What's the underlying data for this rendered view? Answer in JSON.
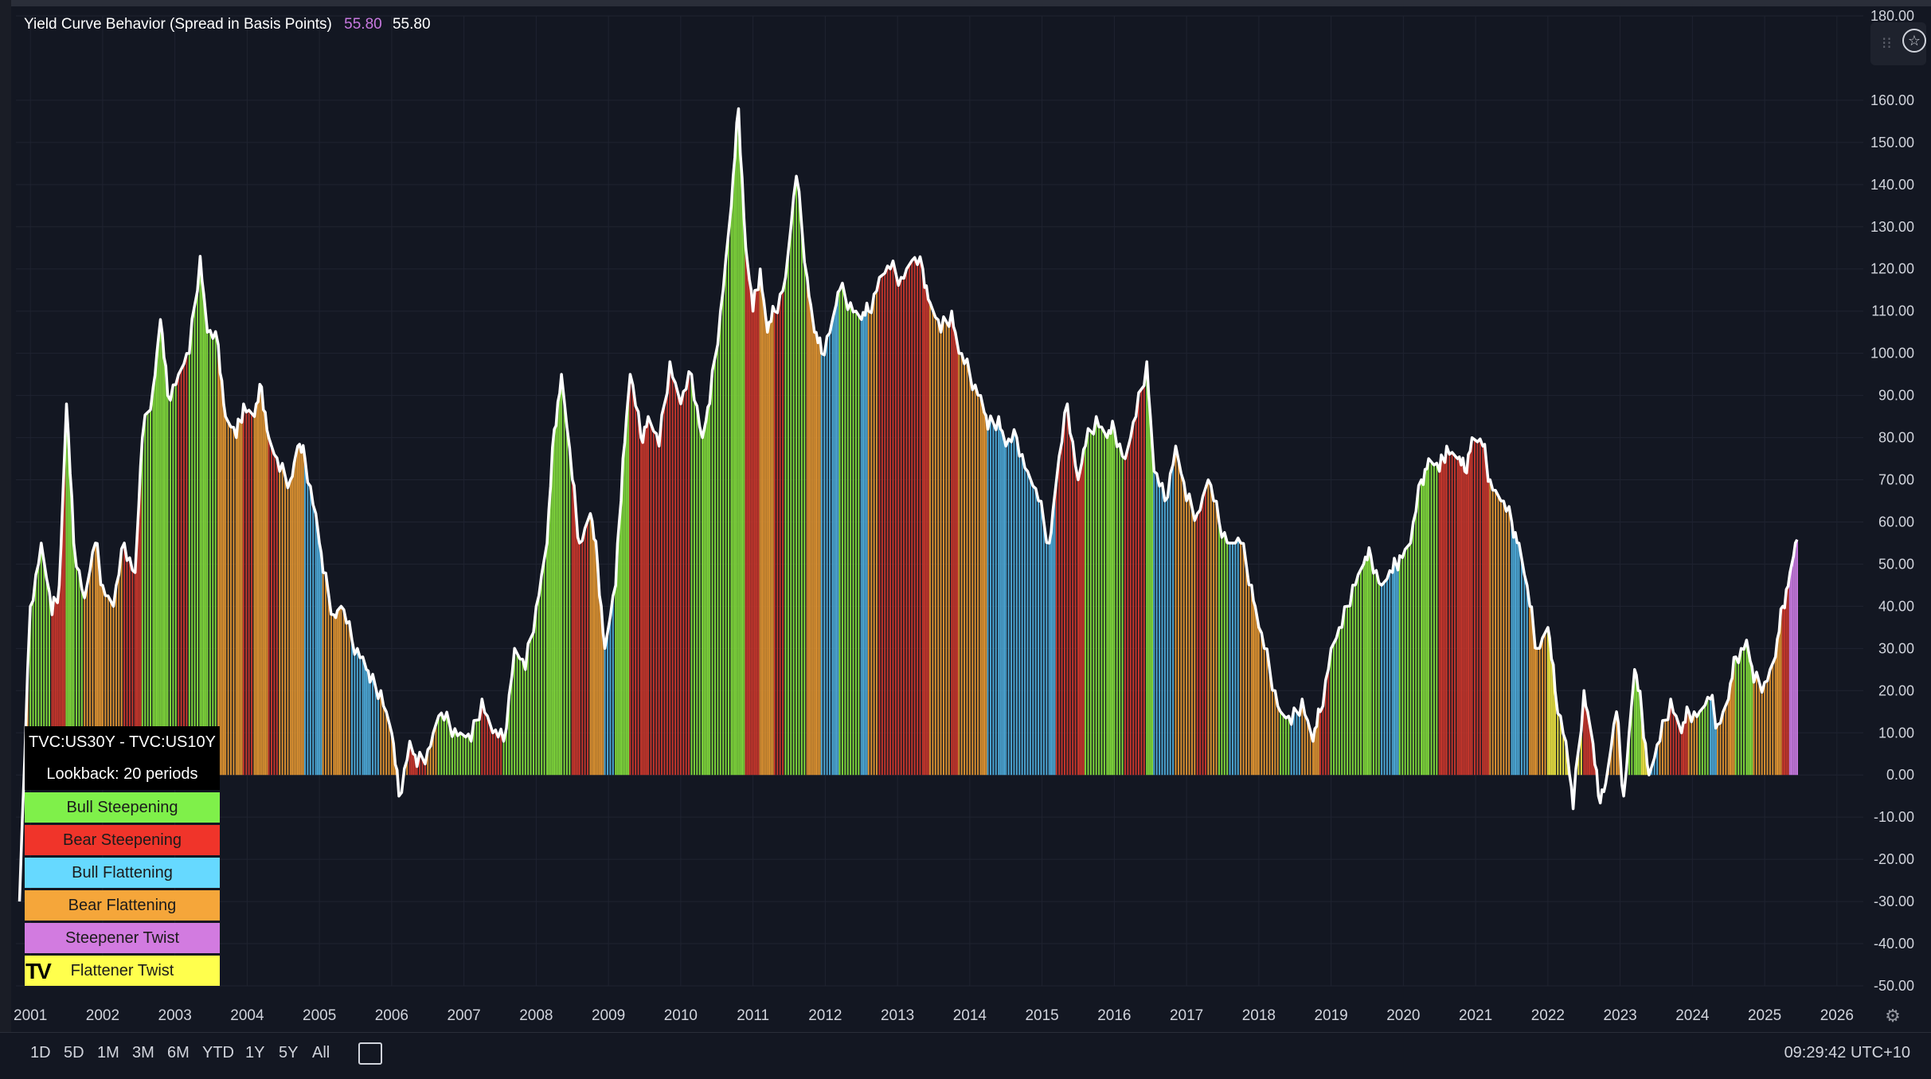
{
  "indicator": {
    "title": "Yield Curve Behavior (Spread in Basis Points)",
    "value_1": "55.80",
    "value_2": "55.80"
  },
  "legend": {
    "pair": "TVC:US30Y - TVC:US10Y",
    "lookback": "Lookback: 20 periods",
    "items": [
      {
        "label": "Bull Steepening",
        "color": "#7ff04a"
      },
      {
        "label": "Bear Steepening",
        "color": "#f0342a"
      },
      {
        "label": "Bull Flattening",
        "color": "#66d9ff"
      },
      {
        "label": "Bear Flattening",
        "color": "#f5a63a"
      },
      {
        "label": "Steepener Twist",
        "color": "#d27be0"
      },
      {
        "label": "Flattener Twist",
        "color": "#ffff4d"
      }
    ]
  },
  "logo_text": "TV",
  "range_buttons": [
    "1D",
    "5D",
    "1M",
    "3M",
    "6M",
    "YTD",
    "1Y",
    "5Y",
    "All"
  ],
  "clock": "09:29:42 UTC+10",
  "chart_data": {
    "type": "bar",
    "ylim": [
      -50,
      180
    ],
    "y_ticks": [
      "180.00",
      "160.00",
      "150.00",
      "140.00",
      "130.00",
      "120.00",
      "110.00",
      "100.00",
      "90.00",
      "80.00",
      "70.00",
      "60.00",
      "50.00",
      "40.00",
      "30.00",
      "20.00",
      "10.00",
      "0.00",
      "-10.00",
      "-20.00",
      "-30.00",
      "-40.00",
      "-50.00"
    ],
    "x_ticks": [
      "2001",
      "2002",
      "2003",
      "2004",
      "2005",
      "2006",
      "2007",
      "2008",
      "2009",
      "2010",
      "2011",
      "2012",
      "2013",
      "2014",
      "2015",
      "2016",
      "2017",
      "2018",
      "2019",
      "2020",
      "2021",
      "2022",
      "2023",
      "2024",
      "2025",
      "2026"
    ],
    "x_range": [
      2000.8,
      2026.2
    ],
    "line_color": "#ffffff",
    "regime_colors": {
      "BS": "#7dd33a",
      "BRS": "#c2352b",
      "BF": "#4aa3d0",
      "BRF": "#d88f30",
      "ST": "#c879e0",
      "FT": "#e8e040"
    },
    "series": [
      {
        "x": 2000.85,
        "y": -30,
        "r": "BRF"
      },
      {
        "x": 2001.0,
        "y": 40,
        "r": "BS"
      },
      {
        "x": 2001.15,
        "y": 55,
        "r": "BS"
      },
      {
        "x": 2001.3,
        "y": 38,
        "r": "BRS"
      },
      {
        "x": 2001.4,
        "y": 45,
        "r": "BRS"
      },
      {
        "x": 2001.5,
        "y": 88,
        "r": "BS"
      },
      {
        "x": 2001.6,
        "y": 55,
        "r": "BS"
      },
      {
        "x": 2001.75,
        "y": 42,
        "r": "BRF"
      },
      {
        "x": 2001.9,
        "y": 55,
        "r": "BRF"
      },
      {
        "x": 2002.0,
        "y": 45,
        "r": "BRF"
      },
      {
        "x": 2002.15,
        "y": 40,
        "r": "BRF"
      },
      {
        "x": 2002.3,
        "y": 55,
        "r": "BRS"
      },
      {
        "x": 2002.45,
        "y": 48,
        "r": "BRS"
      },
      {
        "x": 2002.55,
        "y": 80,
        "r": "BS"
      },
      {
        "x": 2002.7,
        "y": 92,
        "r": "BS"
      },
      {
        "x": 2002.8,
        "y": 108,
        "r": "BS"
      },
      {
        "x": 2002.9,
        "y": 90,
        "r": "BS"
      },
      {
        "x": 2003.05,
        "y": 95,
        "r": "BRS"
      },
      {
        "x": 2003.2,
        "y": 100,
        "r": "BS"
      },
      {
        "x": 2003.35,
        "y": 123,
        "r": "BS"
      },
      {
        "x": 2003.45,
        "y": 105,
        "r": "BS"
      },
      {
        "x": 2003.6,
        "y": 102,
        "r": "BRF"
      },
      {
        "x": 2003.7,
        "y": 85,
        "r": "BRF"
      },
      {
        "x": 2003.85,
        "y": 80,
        "r": "BRF"
      },
      {
        "x": 2003.95,
        "y": 88,
        "r": "BRS"
      },
      {
        "x": 2004.1,
        "y": 85,
        "r": "BRF"
      },
      {
        "x": 2004.2,
        "y": 92,
        "r": "BRF"
      },
      {
        "x": 2004.3,
        "y": 80,
        "r": "BRS"
      },
      {
        "x": 2004.45,
        "y": 72,
        "r": "BRF"
      },
      {
        "x": 2004.6,
        "y": 70,
        "r": "BRF"
      },
      {
        "x": 2004.7,
        "y": 78,
        "r": "BRF"
      },
      {
        "x": 2004.8,
        "y": 75,
        "r": "BF"
      },
      {
        "x": 2004.95,
        "y": 62,
        "r": "BF"
      },
      {
        "x": 2005.05,
        "y": 48,
        "r": "BRF"
      },
      {
        "x": 2005.2,
        "y": 38,
        "r": "BRF"
      },
      {
        "x": 2005.3,
        "y": 40,
        "r": "BRF"
      },
      {
        "x": 2005.45,
        "y": 32,
        "r": "BF"
      },
      {
        "x": 2005.6,
        "y": 28,
        "r": "BF"
      },
      {
        "x": 2005.7,
        "y": 22,
        "r": "BF"
      },
      {
        "x": 2005.85,
        "y": 20,
        "r": "BRF"
      },
      {
        "x": 2006.0,
        "y": 10,
        "r": "BRF"
      },
      {
        "x": 2006.1,
        "y": -5,
        "r": "BRF"
      },
      {
        "x": 2006.25,
        "y": 8,
        "r": "BRS"
      },
      {
        "x": 2006.35,
        "y": 2,
        "r": "BRS"
      },
      {
        "x": 2006.5,
        "y": 6,
        "r": "BRF"
      },
      {
        "x": 2006.65,
        "y": 14,
        "r": "BS"
      },
      {
        "x": 2006.8,
        "y": 12,
        "r": "BS"
      },
      {
        "x": 2006.95,
        "y": 10,
        "r": "BS"
      },
      {
        "x": 2007.1,
        "y": 8,
        "r": "BS"
      },
      {
        "x": 2007.25,
        "y": 18,
        "r": "BRS"
      },
      {
        "x": 2007.4,
        "y": 10,
        "r": "BRS"
      },
      {
        "x": 2007.55,
        "y": 8,
        "r": "BS"
      },
      {
        "x": 2007.7,
        "y": 30,
        "r": "BS"
      },
      {
        "x": 2007.85,
        "y": 25,
        "r": "BS"
      },
      {
        "x": 2008.0,
        "y": 40,
        "r": "BS"
      },
      {
        "x": 2008.15,
        "y": 55,
        "r": "BS"
      },
      {
        "x": 2008.25,
        "y": 82,
        "r": "BS"
      },
      {
        "x": 2008.35,
        "y": 95,
        "r": "BS"
      },
      {
        "x": 2008.5,
        "y": 70,
        "r": "BRS"
      },
      {
        "x": 2008.6,
        "y": 55,
        "r": "BRS"
      },
      {
        "x": 2008.75,
        "y": 62,
        "r": "BRF"
      },
      {
        "x": 2008.85,
        "y": 50,
        "r": "BRF"
      },
      {
        "x": 2008.95,
        "y": 30,
        "r": "BF"
      },
      {
        "x": 2009.1,
        "y": 45,
        "r": "BS"
      },
      {
        "x": 2009.2,
        "y": 75,
        "r": "BS"
      },
      {
        "x": 2009.3,
        "y": 95,
        "r": "BRS"
      },
      {
        "x": 2009.45,
        "y": 80,
        "r": "BRS"
      },
      {
        "x": 2009.55,
        "y": 85,
        "r": "BRS"
      },
      {
        "x": 2009.7,
        "y": 78,
        "r": "BRS"
      },
      {
        "x": 2009.85,
        "y": 98,
        "r": "BRS"
      },
      {
        "x": 2010.0,
        "y": 88,
        "r": "BRS"
      },
      {
        "x": 2010.15,
        "y": 95,
        "r": "BS"
      },
      {
        "x": 2010.3,
        "y": 80,
        "r": "BS"
      },
      {
        "x": 2010.4,
        "y": 88,
        "r": "BS"
      },
      {
        "x": 2010.55,
        "y": 110,
        "r": "BS"
      },
      {
        "x": 2010.7,
        "y": 135,
        "r": "BS"
      },
      {
        "x": 2010.8,
        "y": 158,
        "r": "BS"
      },
      {
        "x": 2010.9,
        "y": 125,
        "r": "BRS"
      },
      {
        "x": 2011.0,
        "y": 110,
        "r": "BRS"
      },
      {
        "x": 2011.1,
        "y": 120,
        "r": "BRF"
      },
      {
        "x": 2011.2,
        "y": 105,
        "r": "BRF"
      },
      {
        "x": 2011.3,
        "y": 110,
        "r": "BRS"
      },
      {
        "x": 2011.45,
        "y": 118,
        "r": "BS"
      },
      {
        "x": 2011.6,
        "y": 142,
        "r": "BS"
      },
      {
        "x": 2011.75,
        "y": 118,
        "r": "BRF"
      },
      {
        "x": 2011.85,
        "y": 105,
        "r": "BRF"
      },
      {
        "x": 2011.95,
        "y": 100,
        "r": "BF"
      },
      {
        "x": 2012.1,
        "y": 108,
        "r": "BF"
      },
      {
        "x": 2012.2,
        "y": 115,
        "r": "BS"
      },
      {
        "x": 2012.35,
        "y": 112,
        "r": "BS"
      },
      {
        "x": 2012.5,
        "y": 108,
        "r": "BF"
      },
      {
        "x": 2012.6,
        "y": 110,
        "r": "BRF"
      },
      {
        "x": 2012.75,
        "y": 118,
        "r": "BRS"
      },
      {
        "x": 2012.9,
        "y": 120,
        "r": "BRS"
      },
      {
        "x": 2013.05,
        "y": 118,
        "r": "BRS"
      },
      {
        "x": 2013.2,
        "y": 122,
        "r": "BRS"
      },
      {
        "x": 2013.35,
        "y": 120,
        "r": "BRS"
      },
      {
        "x": 2013.45,
        "y": 112,
        "r": "BRF"
      },
      {
        "x": 2013.6,
        "y": 105,
        "r": "BRF"
      },
      {
        "x": 2013.75,
        "y": 110,
        "r": "BRS"
      },
      {
        "x": 2013.85,
        "y": 100,
        "r": "BRF"
      },
      {
        "x": 2014.0,
        "y": 95,
        "r": "BRF"
      },
      {
        "x": 2014.15,
        "y": 90,
        "r": "BRF"
      },
      {
        "x": 2014.25,
        "y": 82,
        "r": "BF"
      },
      {
        "x": 2014.4,
        "y": 85,
        "r": "BF"
      },
      {
        "x": 2014.5,
        "y": 78,
        "r": "BF"
      },
      {
        "x": 2014.65,
        "y": 80,
        "r": "BF"
      },
      {
        "x": 2014.8,
        "y": 72,
        "r": "BF"
      },
      {
        "x": 2014.95,
        "y": 65,
        "r": "BF"
      },
      {
        "x": 2015.1,
        "y": 55,
        "r": "BF"
      },
      {
        "x": 2015.2,
        "y": 70,
        "r": "BRS"
      },
      {
        "x": 2015.35,
        "y": 88,
        "r": "BRS"
      },
      {
        "x": 2015.5,
        "y": 70,
        "r": "BRS"
      },
      {
        "x": 2015.6,
        "y": 78,
        "r": "BS"
      },
      {
        "x": 2015.75,
        "y": 85,
        "r": "BS"
      },
      {
        "x": 2015.9,
        "y": 80,
        "r": "BS"
      },
      {
        "x": 2016.0,
        "y": 82,
        "r": "BS"
      },
      {
        "x": 2016.15,
        "y": 75,
        "r": "BRS"
      },
      {
        "x": 2016.3,
        "y": 85,
        "r": "BRS"
      },
      {
        "x": 2016.45,
        "y": 98,
        "r": "BS"
      },
      {
        "x": 2016.55,
        "y": 72,
        "r": "BF"
      },
      {
        "x": 2016.7,
        "y": 65,
        "r": "BF"
      },
      {
        "x": 2016.85,
        "y": 78,
        "r": "BRF"
      },
      {
        "x": 2017.0,
        "y": 65,
        "r": "BRF"
      },
      {
        "x": 2017.15,
        "y": 62,
        "r": "BRS"
      },
      {
        "x": 2017.3,
        "y": 70,
        "r": "BRF"
      },
      {
        "x": 2017.45,
        "y": 60,
        "r": "BS"
      },
      {
        "x": 2017.6,
        "y": 55,
        "r": "BF"
      },
      {
        "x": 2017.75,
        "y": 55,
        "r": "BRF"
      },
      {
        "x": 2017.9,
        "y": 45,
        "r": "BRF"
      },
      {
        "x": 2018.0,
        "y": 35,
        "r": "BRF"
      },
      {
        "x": 2018.15,
        "y": 25,
        "r": "BRF"
      },
      {
        "x": 2018.3,
        "y": 15,
        "r": "BS"
      },
      {
        "x": 2018.45,
        "y": 12,
        "r": "BF"
      },
      {
        "x": 2018.6,
        "y": 18,
        "r": "BRF"
      },
      {
        "x": 2018.75,
        "y": 8,
        "r": "BRF"
      },
      {
        "x": 2018.85,
        "y": 15,
        "r": "BRS"
      },
      {
        "x": 2019.0,
        "y": 30,
        "r": "BS"
      },
      {
        "x": 2019.15,
        "y": 35,
        "r": "BS"
      },
      {
        "x": 2019.3,
        "y": 45,
        "r": "BS"
      },
      {
        "x": 2019.45,
        "y": 50,
        "r": "BS"
      },
      {
        "x": 2019.55,
        "y": 52,
        "r": "BS"
      },
      {
        "x": 2019.7,
        "y": 45,
        "r": "BF"
      },
      {
        "x": 2019.85,
        "y": 48,
        "r": "BF"
      },
      {
        "x": 2019.95,
        "y": 52,
        "r": "BS"
      },
      {
        "x": 2020.1,
        "y": 55,
        "r": "BS"
      },
      {
        "x": 2020.25,
        "y": 70,
        "r": "BS"
      },
      {
        "x": 2020.35,
        "y": 75,
        "r": "BS"
      },
      {
        "x": 2020.5,
        "y": 72,
        "r": "BRS"
      },
      {
        "x": 2020.6,
        "y": 78,
        "r": "BRS"
      },
      {
        "x": 2020.75,
        "y": 75,
        "r": "BRS"
      },
      {
        "x": 2020.85,
        "y": 72,
        "r": "BRS"
      },
      {
        "x": 2020.95,
        "y": 80,
        "r": "BRS"
      },
      {
        "x": 2021.1,
        "y": 78,
        "r": "BRS"
      },
      {
        "x": 2021.2,
        "y": 70,
        "r": "BRF"
      },
      {
        "x": 2021.35,
        "y": 65,
        "r": "BRF"
      },
      {
        "x": 2021.5,
        "y": 60,
        "r": "BF"
      },
      {
        "x": 2021.6,
        "y": 55,
        "r": "BF"
      },
      {
        "x": 2021.75,
        "y": 40,
        "r": "BRF"
      },
      {
        "x": 2021.85,
        "y": 30,
        "r": "BRF"
      },
      {
        "x": 2022.0,
        "y": 35,
        "r": "FT"
      },
      {
        "x": 2022.1,
        "y": 20,
        "r": "FT"
      },
      {
        "x": 2022.25,
        "y": 8,
        "r": "FT"
      },
      {
        "x": 2022.35,
        "y": -8,
        "r": "FT"
      },
      {
        "x": 2022.5,
        "y": 20,
        "r": "BRS"
      },
      {
        "x": 2022.6,
        "y": 10,
        "r": "BRS"
      },
      {
        "x": 2022.7,
        "y": -5,
        "r": "BRF"
      },
      {
        "x": 2022.8,
        "y": -2,
        "r": "BRF"
      },
      {
        "x": 2022.95,
        "y": 15,
        "r": "BRF"
      },
      {
        "x": 2023.05,
        "y": -5,
        "r": "BS"
      },
      {
        "x": 2023.2,
        "y": 25,
        "r": "BS"
      },
      {
        "x": 2023.3,
        "y": 15,
        "r": "FT"
      },
      {
        "x": 2023.4,
        "y": 0,
        "r": "BF"
      },
      {
        "x": 2023.55,
        "y": 8,
        "r": "BRF"
      },
      {
        "x": 2023.7,
        "y": 18,
        "r": "BRS"
      },
      {
        "x": 2023.85,
        "y": 10,
        "r": "BRS"
      },
      {
        "x": 2023.95,
        "y": 15,
        "r": "BRF"
      },
      {
        "x": 2024.1,
        "y": 15,
        "r": "BS"
      },
      {
        "x": 2024.25,
        "y": 18,
        "r": "BF"
      },
      {
        "x": 2024.35,
        "y": 12,
        "r": "BRF"
      },
      {
        "x": 2024.5,
        "y": 18,
        "r": "BRF"
      },
      {
        "x": 2024.6,
        "y": 28,
        "r": "BS"
      },
      {
        "x": 2024.75,
        "y": 32,
        "r": "BS"
      },
      {
        "x": 2024.85,
        "y": 22,
        "r": "BRF"
      },
      {
        "x": 2025.0,
        "y": 22,
        "r": "BRF"
      },
      {
        "x": 2025.15,
        "y": 28,
        "r": "BRF"
      },
      {
        "x": 2025.25,
        "y": 40,
        "r": "BRS"
      },
      {
        "x": 2025.35,
        "y": 48,
        "r": "ST"
      },
      {
        "x": 2025.45,
        "y": 55.8,
        "r": "ST"
      }
    ]
  }
}
